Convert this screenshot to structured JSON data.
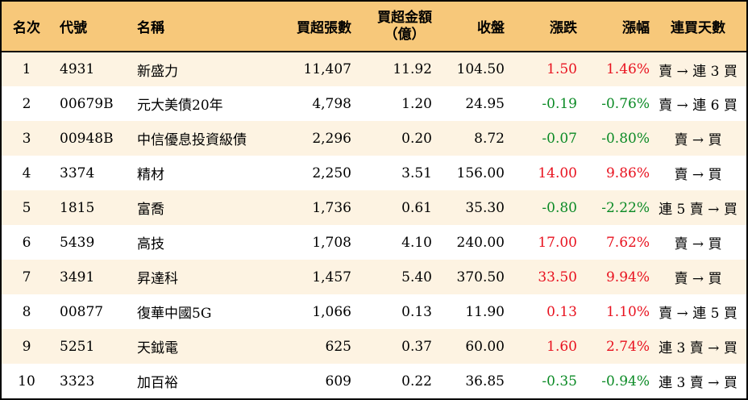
{
  "headers": {
    "rank": "名次",
    "code": "代號",
    "name": "名稱",
    "net_buy_lots": "買超張數",
    "net_buy_amount_line1": "買超金額",
    "net_buy_amount_line2": "（億）",
    "close": "收盤",
    "change": "漲跌",
    "change_pct": "漲幅",
    "consecutive_days": "連買天數"
  },
  "colors": {
    "header_bg": "#f7c87a",
    "row_alt_bg": "#fdf3e2",
    "up": "#e8121f",
    "down": "#0b8a25"
  },
  "rows": [
    {
      "rank": "1",
      "code": "4931",
      "name": "新盛力",
      "lots": "11,407",
      "amount": "11.92",
      "close": "104.50",
      "change": "1.50",
      "pct": "1.46%",
      "dir": "up",
      "days": "賣 → 連 3 買"
    },
    {
      "rank": "2",
      "code": "00679B",
      "name": "元大美債20年",
      "lots": "4,798",
      "amount": "1.20",
      "close": "24.95",
      "change": "-0.19",
      "pct": "-0.76%",
      "dir": "down",
      "days": "賣 → 連 6 買"
    },
    {
      "rank": "3",
      "code": "00948B",
      "name": "中信優息投資級債",
      "lots": "2,296",
      "amount": "0.20",
      "close": "8.72",
      "change": "-0.07",
      "pct": "-0.80%",
      "dir": "down",
      "days": "賣 → 買"
    },
    {
      "rank": "4",
      "code": "3374",
      "name": "精材",
      "lots": "2,250",
      "amount": "3.51",
      "close": "156.00",
      "change": "14.00",
      "pct": "9.86%",
      "dir": "up",
      "days": "賣 → 買"
    },
    {
      "rank": "5",
      "code": "1815",
      "name": "富喬",
      "lots": "1,736",
      "amount": "0.61",
      "close": "35.30",
      "change": "-0.80",
      "pct": "-2.22%",
      "dir": "down",
      "days": "連 5 賣 → 買"
    },
    {
      "rank": "6",
      "code": "5439",
      "name": "高技",
      "lots": "1,708",
      "amount": "4.10",
      "close": "240.00",
      "change": "17.00",
      "pct": "7.62%",
      "dir": "up",
      "days": "賣 → 買"
    },
    {
      "rank": "7",
      "code": "3491",
      "name": "昇達科",
      "lots": "1,457",
      "amount": "5.40",
      "close": "370.50",
      "change": "33.50",
      "pct": "9.94%",
      "dir": "up",
      "days": "賣 → 買"
    },
    {
      "rank": "8",
      "code": "00877",
      "name": "復華中國5G",
      "lots": "1,066",
      "amount": "0.13",
      "close": "11.90",
      "change": "0.13",
      "pct": "1.10%",
      "dir": "up",
      "days": "賣 → 連 5 買"
    },
    {
      "rank": "9",
      "code": "5251",
      "name": "天鉞電",
      "lots": "625",
      "amount": "0.37",
      "close": "60.00",
      "change": "1.60",
      "pct": "2.74%",
      "dir": "up",
      "days": "連 3 賣 → 買"
    },
    {
      "rank": "10",
      "code": "3323",
      "name": "加百裕",
      "lots": "609",
      "amount": "0.22",
      "close": "36.85",
      "change": "-0.35",
      "pct": "-0.94%",
      "dir": "down",
      "days": "連 3 賣 → 買"
    }
  ]
}
